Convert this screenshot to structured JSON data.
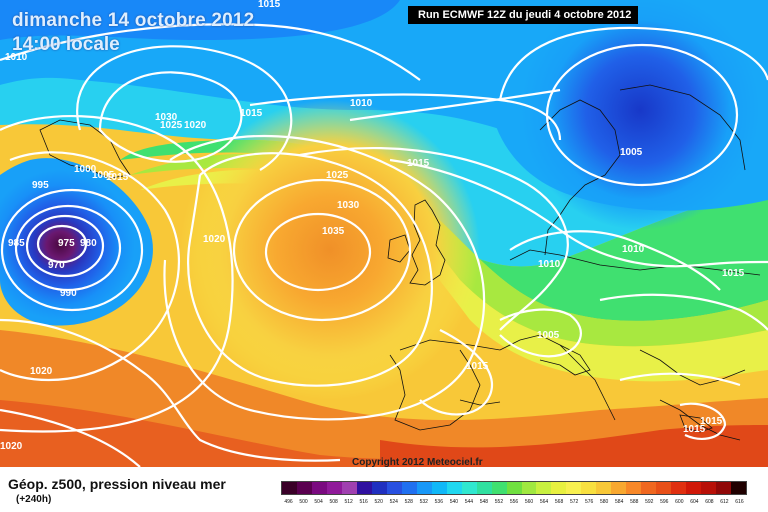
{
  "header": {
    "date": "dimanche 14 octobre 2012",
    "time": "14:00 locale",
    "run": "Run ECMWF 12Z du jeudi 4 octobre 2012"
  },
  "footer": {
    "title": "Géop. z500, pression niveau mer",
    "lead": "(+240h)",
    "copyright": "Copyright 2012 Meteociel.fr"
  },
  "scale": {
    "labels": [
      "496",
      "500",
      "504",
      "508",
      "512",
      "516",
      "520",
      "524",
      "528",
      "532",
      "536",
      "540",
      "544",
      "548",
      "552",
      "556",
      "560",
      "564",
      "568",
      "572",
      "576",
      "580",
      "584",
      "588",
      "592",
      "596",
      "600",
      "604",
      "608",
      "612",
      "616"
    ],
    "colors": [
      "#3a0028",
      "#5a0050",
      "#7a0a80",
      "#901a9a",
      "#a040b0",
      "#3010a0",
      "#2030c0",
      "#2850e0",
      "#2070f0",
      "#1898f8",
      "#10b8f8",
      "#20d8f0",
      "#30e8d0",
      "#30e0a0",
      "#40e070",
      "#70e040",
      "#a0e840",
      "#c8f040",
      "#e8f040",
      "#f8f050",
      "#f8e040",
      "#f8c838",
      "#f8a830",
      "#f88828",
      "#f06820",
      "#e85018",
      "#e03010",
      "#d01808",
      "#b81008",
      "#900808",
      "#200000"
    ]
  },
  "map": {
    "isobars": [
      "1015",
      "1010",
      "1030",
      "1025",
      "1020",
      "1015",
      "1010",
      "1000",
      "995",
      "1015",
      "1005",
      "985",
      "975",
      "980",
      "970",
      "990",
      "1020",
      "1035",
      "1030",
      "1025",
      "1015",
      "1020",
      "1010",
      "1005",
      "1015",
      "1010",
      "1015",
      "1015",
      "1015",
      "1020",
      "1020"
    ]
  }
}
